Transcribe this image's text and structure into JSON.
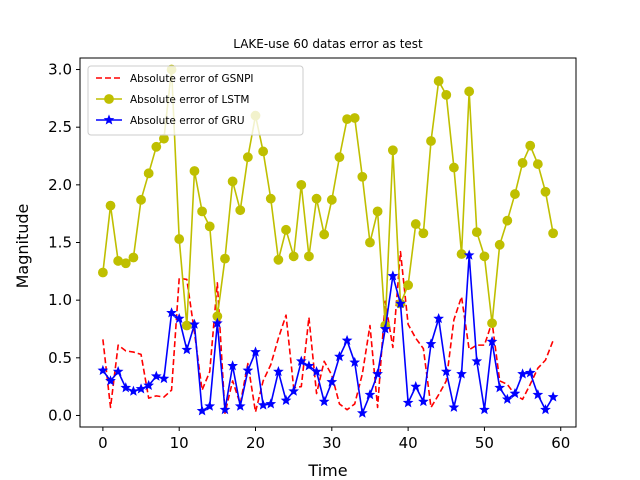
{
  "chart_data": {
    "type": "line",
    "title": "LAKE-use 60 datas error as test",
    "xlabel": "Time",
    "ylabel": "Magnitude",
    "xlim": [
      -3,
      62
    ],
    "ylim": [
      -0.1,
      3.1
    ],
    "xticks": [
      "0",
      "10",
      "20",
      "30",
      "40",
      "50",
      "60"
    ],
    "yticks": [
      "0.0",
      "0.5",
      "1.0",
      "1.5",
      "2.0",
      "2.5",
      "3.0"
    ],
    "grid": false,
    "legend_position": "top-left",
    "x": [
      0,
      1,
      2,
      3,
      4,
      5,
      6,
      7,
      8,
      9,
      10,
      11,
      12,
      13,
      14,
      15,
      16,
      17,
      18,
      19,
      20,
      21,
      22,
      23,
      24,
      25,
      26,
      27,
      28,
      29,
      30,
      31,
      32,
      33,
      34,
      35,
      36,
      37,
      38,
      39,
      40,
      41,
      42,
      43,
      44,
      45,
      46,
      47,
      48,
      49,
      50,
      51,
      52,
      53,
      54,
      55,
      56,
      57,
      58,
      59
    ],
    "series": [
      {
        "name": "Absolute error of GSNPI",
        "color": "#ff0000",
        "style": "dashed",
        "marker": "none",
        "values": [
          0.66,
          0.07,
          0.61,
          0.56,
          0.55,
          0.53,
          0.15,
          0.17,
          0.16,
          0.22,
          1.19,
          1.18,
          0.72,
          0.22,
          0.38,
          1.15,
          0.02,
          0.3,
          0.1,
          0.45,
          0.03,
          0.3,
          0.44,
          0.67,
          0.87,
          0.24,
          0.25,
          0.85,
          0.19,
          0.47,
          0.35,
          0.1,
          0.05,
          0.1,
          0.36,
          0.78,
          0.07,
          0.99,
          0.59,
          1.42,
          0.79,
          0.67,
          0.58,
          0.07,
          0.18,
          0.3,
          0.83,
          1.03,
          0.57,
          0.61,
          0.61,
          0.81,
          0.3,
          0.27,
          0.18,
          0.14,
          0.27,
          0.41,
          0.48,
          0.65
        ]
      },
      {
        "name": "Absolute error of LSTM",
        "color": "#bfbf00",
        "style": "solid",
        "marker": "circle",
        "values": [
          1.24,
          1.82,
          1.34,
          1.32,
          1.37,
          1.87,
          2.1,
          2.33,
          2.4,
          3.0,
          1.53,
          0.78,
          2.12,
          1.77,
          1.64,
          0.86,
          1.36,
          2.03,
          1.78,
          2.24,
          2.6,
          2.29,
          1.88,
          1.35,
          1.61,
          1.38,
          2.0,
          1.38,
          1.88,
          1.57,
          1.87,
          2.24,
          2.57,
          2.58,
          2.07,
          1.5,
          1.77,
          0.78,
          2.3,
          0.97,
          1.13,
          1.66,
          1.58,
          2.38,
          2.9,
          2.78,
          2.15,
          1.4,
          2.81,
          1.59,
          1.38,
          0.8,
          1.48,
          1.69,
          1.92,
          2.19,
          2.34,
          2.18,
          1.94,
          1.58
        ]
      },
      {
        "name": "Absolute error of GRU",
        "color": "#0000ff",
        "style": "solid",
        "marker": "star",
        "values": [
          0.39,
          0.3,
          0.38,
          0.24,
          0.21,
          0.23,
          0.26,
          0.34,
          0.32,
          0.89,
          0.84,
          0.57,
          0.79,
          0.04,
          0.08,
          0.8,
          0.05,
          0.43,
          0.08,
          0.39,
          0.55,
          0.09,
          0.1,
          0.38,
          0.13,
          0.21,
          0.47,
          0.43,
          0.38,
          0.12,
          0.29,
          0.51,
          0.65,
          0.46,
          0.02,
          0.18,
          0.36,
          0.75,
          1.21,
          0.97,
          0.11,
          0.25,
          0.12,
          0.62,
          0.84,
          0.38,
          0.07,
          0.36,
          1.39,
          0.47,
          0.05,
          0.64,
          0.24,
          0.14,
          0.19,
          0.36,
          0.37,
          0.18,
          0.05,
          0.16
        ]
      }
    ]
  }
}
